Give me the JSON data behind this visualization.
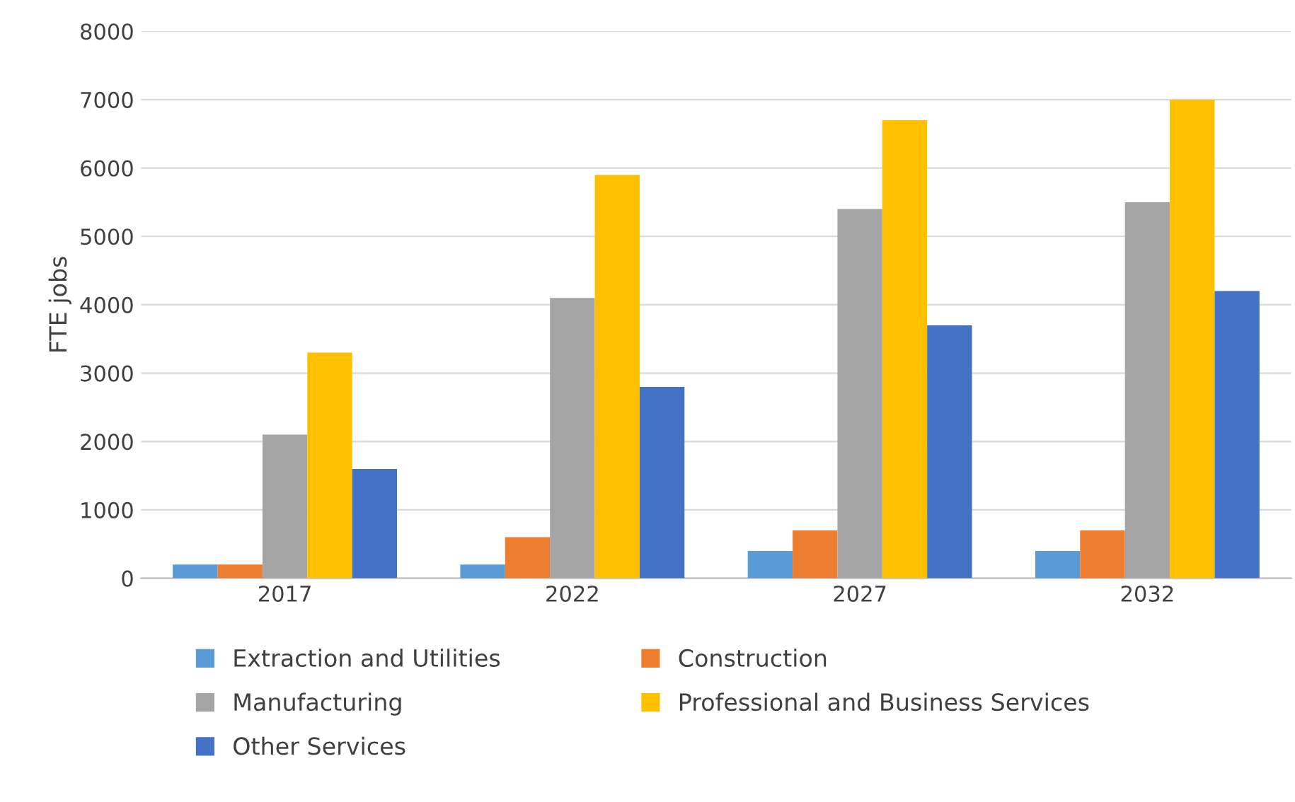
{
  "chart_data": {
    "type": "bar",
    "ylabel": "FTE jobs",
    "categories": [
      "2017",
      "2022",
      "2027",
      "2032"
    ],
    "series": [
      {
        "name": "Extraction and Utilities",
        "color": "#5b9bd5",
        "values": [
          200,
          200,
          400,
          400
        ]
      },
      {
        "name": "Construction",
        "color": "#ed7d31",
        "values": [
          200,
          600,
          700,
          700
        ]
      },
      {
        "name": "Manufacturing",
        "color": "#a5a5a5",
        "values": [
          2100,
          4100,
          5400,
          5500
        ]
      },
      {
        "name": "Professional and Business Services",
        "color": "#ffc000",
        "values": [
          3300,
          5900,
          6700,
          7000
        ]
      },
      {
        "name": "Other Services",
        "color": "#4472c4",
        "values": [
          1600,
          2800,
          3700,
          4200
        ]
      }
    ],
    "ylim": [
      0,
      8000
    ],
    "yticks": [
      0,
      1000,
      2000,
      3000,
      4000,
      5000,
      6000,
      7000,
      8000
    ],
    "grid": "y",
    "legend": "bottom"
  }
}
